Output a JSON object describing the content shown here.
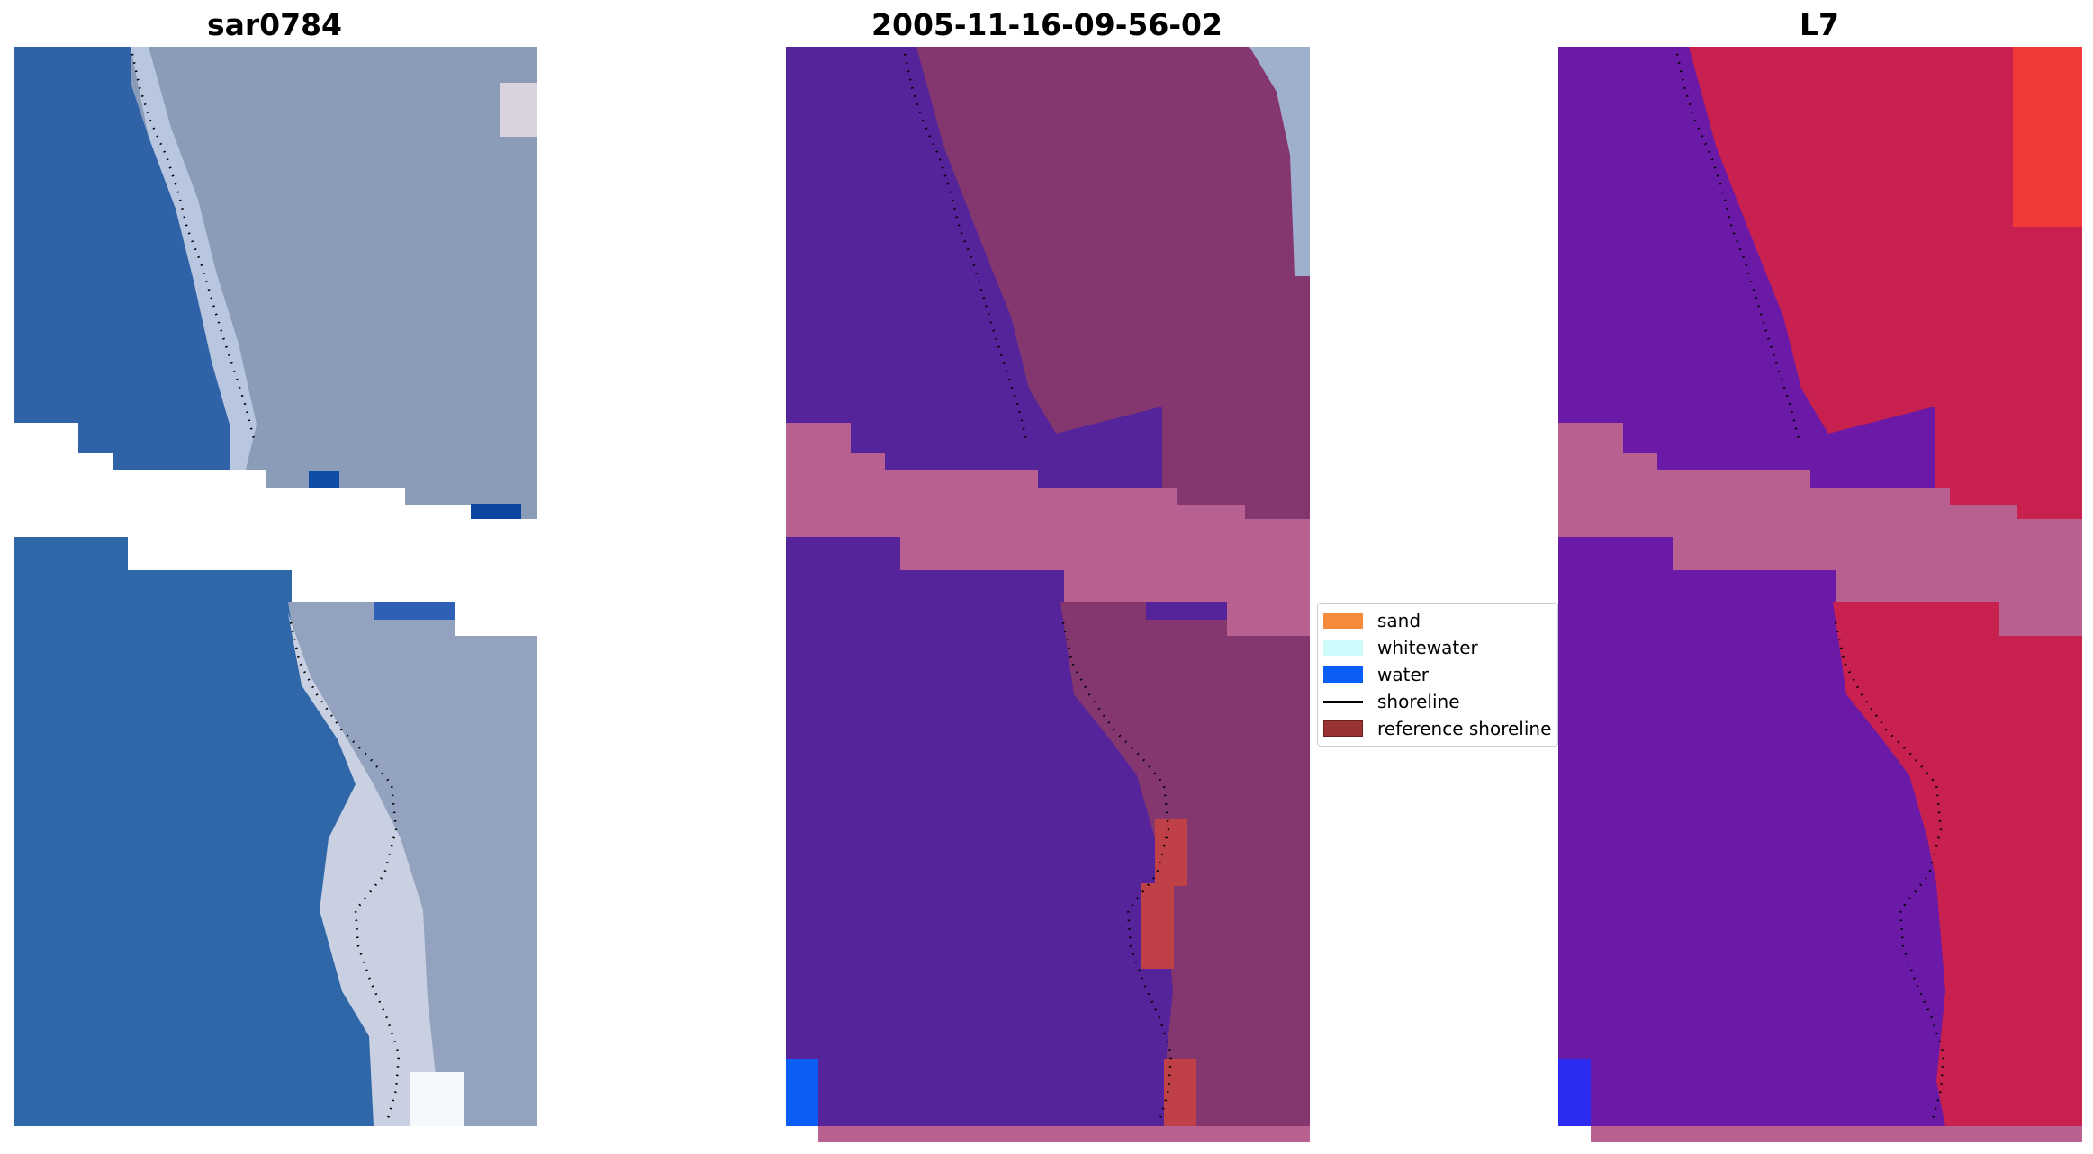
{
  "panels": [
    {
      "title": "sar0784"
    },
    {
      "title": "2005-11-16-09-56-02"
    },
    {
      "title": "L7"
    }
  ],
  "legend": {
    "items": [
      {
        "label": "sand",
        "color": "#f68a3d",
        "kind": "patch"
      },
      {
        "label": "whitewater",
        "color": "#ccfcfc",
        "kind": "patch"
      },
      {
        "label": "water",
        "color": "#0a5ef5",
        "kind": "patch"
      },
      {
        "label": "shoreline",
        "color": "#000000",
        "kind": "line"
      },
      {
        "label": "reference shoreline",
        "color": "#993333",
        "kind": "patch"
      }
    ]
  },
  "colors": {
    "rgb_water": "#2f64a4",
    "rgb_land": "#8ea0ba",
    "class_water": "#55239a",
    "class_land": "#84376e",
    "nodata": "#b8608f",
    "index_water": "#6a1aa6",
    "index_land": "#c8204f"
  }
}
